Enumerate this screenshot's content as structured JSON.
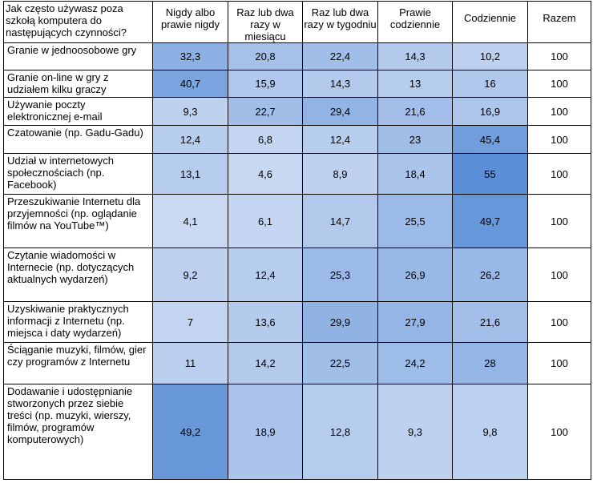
{
  "table": {
    "corner_header": "Jak często używasz poza szkołą komputera do następujących czynności?",
    "column_headers": [
      "Nigdy albo prawie nigdy",
      "Raz lub dwa razy w miesiącu",
      "Raz lub dwa razy w tygodniu",
      "Prawie codziennie",
      "Codziennie",
      "Razem"
    ],
    "rows": [
      {
        "label": "Granie w jednoosobowe gry",
        "values": [
          "32,3",
          "20,8",
          "22,4",
          "14,3",
          "10,2"
        ],
        "total": "100"
      },
      {
        "label": "Granie on-line w gry z udziałem kilku graczy",
        "values": [
          "40,7",
          "15,9",
          "14,3",
          "13",
          "16"
        ],
        "total": "100"
      },
      {
        "label": "Używanie poczty elektronicznej e-mail",
        "values": [
          "9,3",
          "22,7",
          "29,4",
          "21,6",
          "16,9"
        ],
        "total": "100"
      },
      {
        "label": "Czatowanie (np. Gadu-Gadu)",
        "values": [
          "12,4",
          "6,8",
          "12,4",
          "23",
          "45,4"
        ],
        "total": "100"
      },
      {
        "label": "Udział w internetowych społecznościach (np. Facebook)",
        "values": [
          "13,1",
          "4,6",
          "8,9",
          "18,4",
          "55"
        ],
        "total": "100"
      },
      {
        "label": "Przeszukiwanie Internetu dla przyjemności (np. oglądanie filmów na YouTube™)",
        "values": [
          "4,1",
          "6,1",
          "14,7",
          "25,5",
          "49,7"
        ],
        "total": "100"
      },
      {
        "label": "Czytanie wiadomości w Internecie (np. dotyczących aktualnych wydarzeń)",
        "values": [
          "9,2",
          "12,4",
          "25,3",
          "26,9",
          "26,2"
        ],
        "total": "100"
      },
      {
        "label": "Uzyskiwanie praktycznych informacji z Internetu (np. miejsca i daty wydarzeń)",
        "values": [
          "7",
          "13,6",
          "29,9",
          "27,9",
          "21,6"
        ],
        "total": "100"
      },
      {
        "label": "Ściąganie muzyki, filmów, gier czy programów z Internetu",
        "values": [
          "11",
          "14,2",
          "22,5",
          "24,2",
          "28"
        ],
        "total": "100"
      },
      {
        "label": "Dodawanie i udostępnianie stworzonych przez siebie treści (np. muzyki, wierszy, filmów, programów komputerowych)",
        "values": [
          "49,2",
          "18,9",
          "12,8",
          "9,3",
          "9,8"
        ],
        "total": "100"
      }
    ]
  },
  "colors": {
    "header_bg": "#ffffff",
    "border": "#000000",
    "heat_low": "#c9d9f2",
    "heat_high": "#5b8fd7"
  }
}
